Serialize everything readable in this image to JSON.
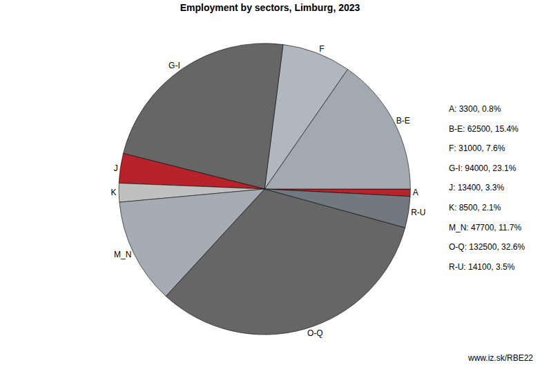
{
  "chart_data": {
    "type": "pie",
    "title": "Employment by sectors, Limburg, 2023",
    "categories": [
      "A",
      "B-E",
      "F",
      "G-I",
      "J",
      "K",
      "M_N",
      "O-Q",
      "R-U"
    ],
    "values": [
      3300,
      62500,
      31000,
      94000,
      13400,
      8500,
      47700,
      132500,
      14100
    ],
    "value_labels": [
      "A: 3300, 0.8%",
      "B-E: 62500, 15.4%",
      "F: 31000, 7.6%",
      "G-I: 94000, 23.1%",
      "J: 13400, 3.3%",
      "K: 8500, 2.1%",
      "M_N: 47700, 11.7%",
      "O-Q: 132500, 32.6%",
      "R-U: 14100, 3.5%"
    ],
    "colors": [
      "#b8232b",
      "#a3a9b1",
      "#b1b7bf",
      "#666666",
      "#b8232b",
      "#c0c0c0",
      "#a7acb4",
      "#666666",
      "#727880"
    ],
    "source": "www.iz.sk/RBE22"
  }
}
